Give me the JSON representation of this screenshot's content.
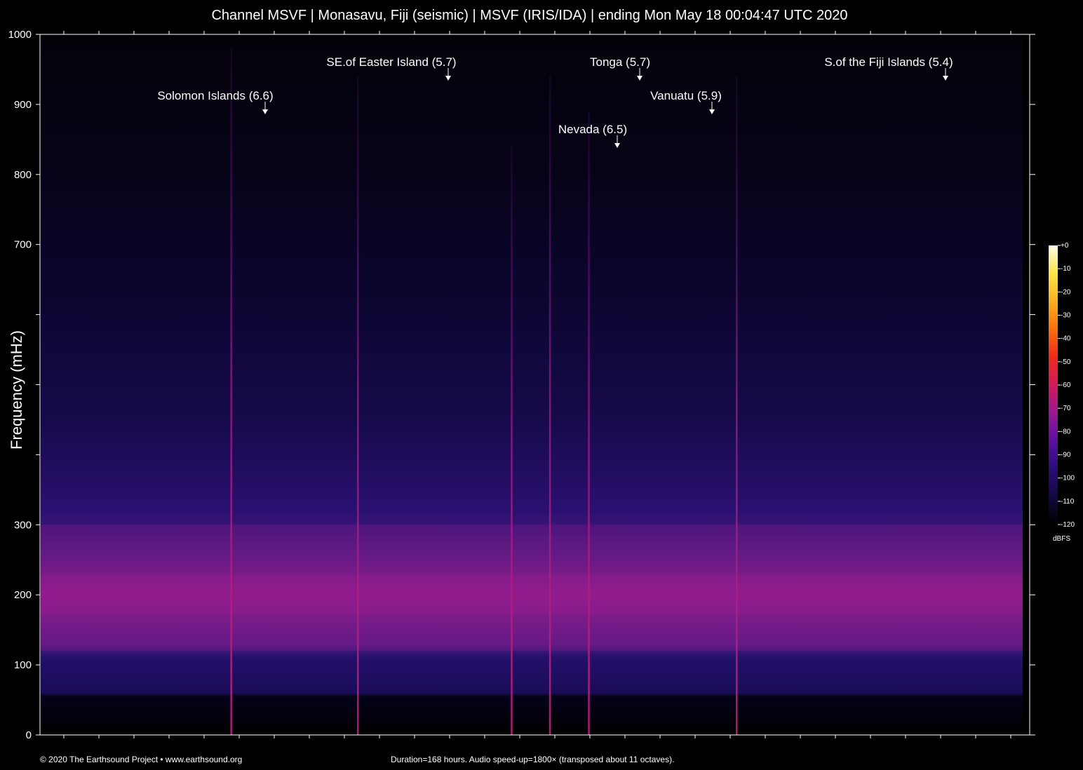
{
  "chart_data": {
    "type": "heatmap",
    "title": "Channel MSVF | Monasavu, Fiji (seismic) | MSVF (IRIS/IDA) | ending Mon May 18 00:04:47 UTC 2020",
    "ylabel": "Frequency (mHz)",
    "xlabel": "",
    "ylim": [
      0,
      1000
    ],
    "y_ticks": [
      0,
      100,
      200,
      300,
      400,
      500,
      600,
      700,
      800,
      900,
      1000
    ],
    "y_tick_labels": [
      "0",
      "100",
      "200",
      "300",
      "",
      "",
      "",
      "700",
      "800",
      "900",
      "1000"
    ],
    "x_range_hours": [
      0,
      168
    ],
    "colorbar": {
      "unit": "dBFS",
      "min": -120,
      "max": 0,
      "ticks": [
        "+0",
        "-10",
        "-20",
        "-30",
        "-40",
        "-50",
        "-60",
        "-70",
        "-80",
        "-90",
        "-100",
        "-110",
        "-120"
      ],
      "colors": [
        "#000000",
        "#1a0a4a",
        "#3a0a8a",
        "#6a10a0",
        "#a01890",
        "#d02060",
        "#f03020",
        "#f87010",
        "#fbb020",
        "#fde040",
        "#fff8d0"
      ]
    },
    "events": [
      {
        "label": "Solomon Islands (6.6)",
        "hour": 34.7,
        "peak_mhz": 980
      },
      {
        "label": "SE.of Easter Island (5.7)",
        "hour": 56.2,
        "peak_mhz": 940
      },
      {
        "label": "Nevada (6.5)",
        "hour": 82.3,
        "peak_mhz": 840
      },
      {
        "label": "Tonga (5.7)",
        "hour": 88.8,
        "peak_mhz": 940
      },
      {
        "label": "Vanuatu (5.9)",
        "hour": 95.4,
        "peak_mhz": 890
      },
      {
        "label": "S.of the Fiji Islands (5.4)",
        "hour": 120.5,
        "peak_mhz": 940
      }
    ],
    "noise_band_mhz": [
      120,
      300
    ],
    "noise_band_peak_mhz": 200
  },
  "footer": {
    "copyright": "© 2020 The Earthsound Project • www.earthsound.org",
    "duration": "Duration=168 hours. Audio speed-up=1800× (transposed about 11 octaves)."
  }
}
